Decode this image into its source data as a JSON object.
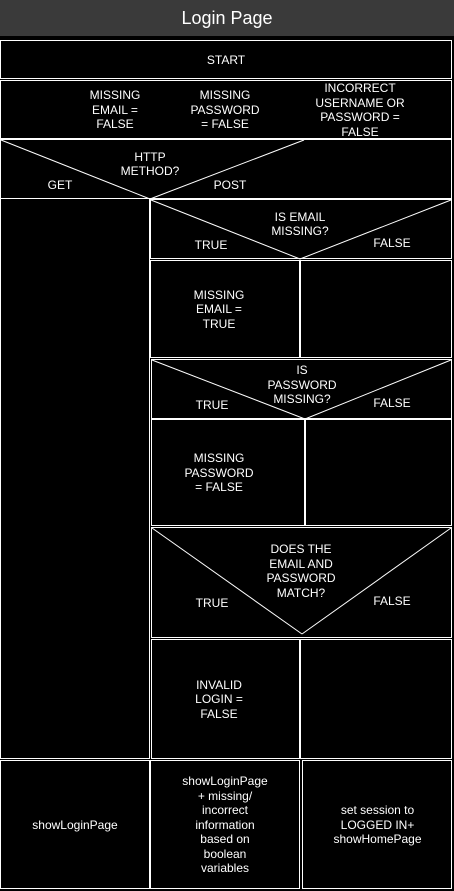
{
  "page": {
    "title": "Login Page"
  },
  "chart": {
    "start": "START",
    "init": {
      "missing_email": "MISSING\nEMAIL =\nFALSE",
      "missing_password": "MISSING\nPASSWORD\n= FALSE",
      "incorrect": "INCORRECT\nUSERNAME OR\nPASSWORD =\nFALSE"
    },
    "http_method": {
      "question": "HTTP\nMETHOD?",
      "left": "GET",
      "right": "POST"
    },
    "email_check": {
      "question": "IS EMAIL\nMISSING?",
      "true": "TRUE",
      "false": "FALSE",
      "true_action": "MISSING\nEMAIL =\nTRUE"
    },
    "password_check": {
      "question": "IS\nPASSWORD\nMISSING?",
      "true": "TRUE",
      "false": "FALSE",
      "true_action": "MISSING\nPASSWORD\n= FALSE"
    },
    "match_check": {
      "question": "DOES THE\nEMAIL AND\nPASSWORD\nMATCH?",
      "true": "TRUE",
      "false": "FALSE",
      "true_action": "INVALID\nLOGIN =\nFALSE"
    },
    "outputs": {
      "get": "showLoginPage",
      "post_true": "showLoginPage\n+ missing/\nincorrect\ninformation\nbased on\nboolean\nvariables",
      "post_false": "set session to\nLOGGED IN+\nshowHomePage"
    }
  }
}
